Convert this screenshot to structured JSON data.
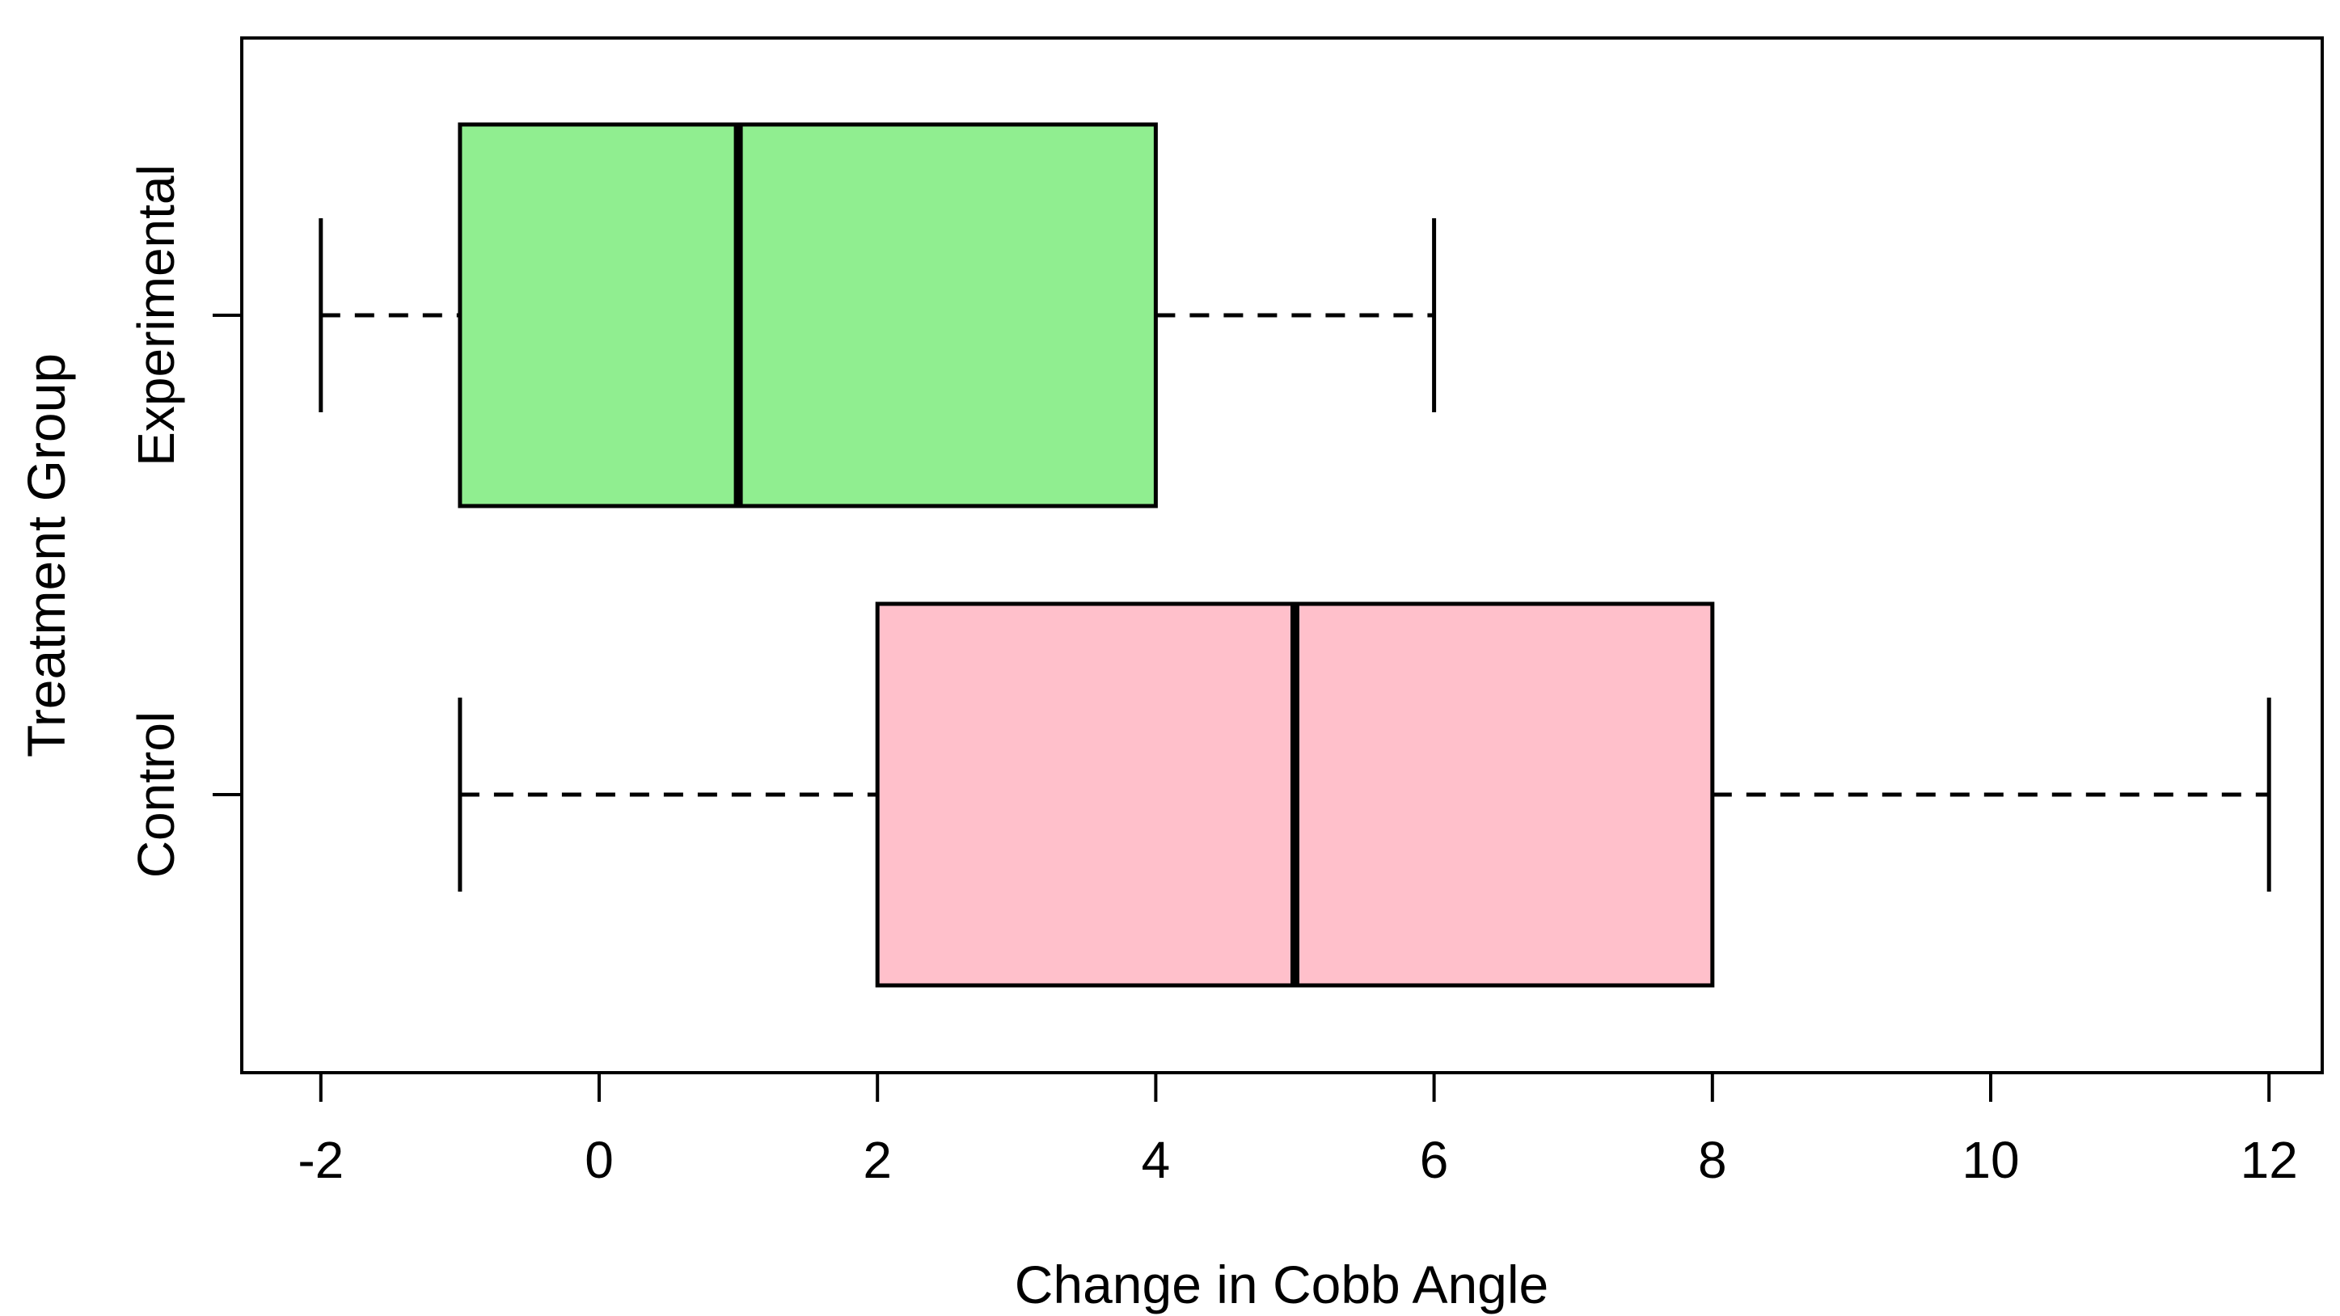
{
  "figure": {
    "background": "#FFFFFF",
    "axis_color": "#000000",
    "text_color": "#000000"
  },
  "chart_data": {
    "type": "boxplot",
    "orientation": "horizontal",
    "title": "",
    "xlabel": "Change in Cobb Angle",
    "ylabel": "Treatment Group",
    "x_ticks": [
      -2,
      0,
      2,
      4,
      6,
      8,
      10,
      12
    ],
    "x_tick_labels": [
      "-2",
      "0",
      "2",
      "4",
      "6",
      "8",
      "10",
      "12"
    ],
    "xlim": [
      -2.57,
      12.39
    ],
    "grid": false,
    "legend": false,
    "whisker_line_style": "dashed",
    "box_border_color": "#000000",
    "median_color": "#000000",
    "groups": [
      {
        "label": "Experimental",
        "fill": "#90EE90",
        "whisker_min": -2,
        "q1": -1,
        "median": 1,
        "q3": 4,
        "whisker_max": 6
      },
      {
        "label": "Control",
        "fill": "#FFC0CB",
        "whisker_min": -1,
        "q1": 2,
        "median": 5,
        "q3": 8,
        "whisker_max": 12
      }
    ]
  }
}
